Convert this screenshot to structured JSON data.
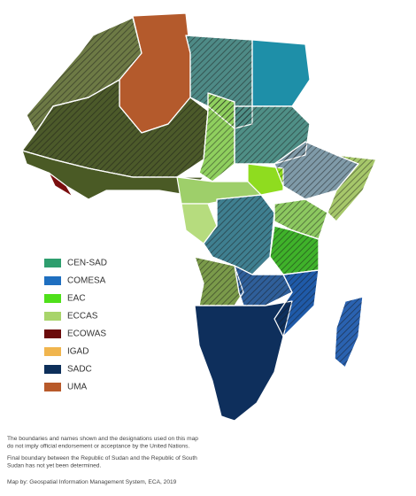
{
  "legend": {
    "items": [
      {
        "label": "CEN-SAD",
        "color": "#2e9e6e"
      },
      {
        "label": "COMESA",
        "color": "#1f6fc0"
      },
      {
        "label": "EAC",
        "color": "#4fe01a"
      },
      {
        "label": "ECCAS",
        "color": "#a8d46a"
      },
      {
        "label": "ECOWAS",
        "color": "#6b0b0b"
      },
      {
        "label": "IGAD",
        "color": "#f0b54e"
      },
      {
        "label": "SADC",
        "color": "#0d2f5a"
      },
      {
        "label": "UMA",
        "color": "#b85a2a"
      }
    ]
  },
  "notes": [
    [
      "The boundaries and names shown and the designations used on this map",
      "do not imply official endorsement or acceptance by the United Nations."
    ],
    [
      "Final boundary between the Republic of Sudan and the Republic of South",
      "Sudan has not yet been determined."
    ]
  ],
  "credit": "Map by: Geospatial Information Management System, ECA, 2019"
}
